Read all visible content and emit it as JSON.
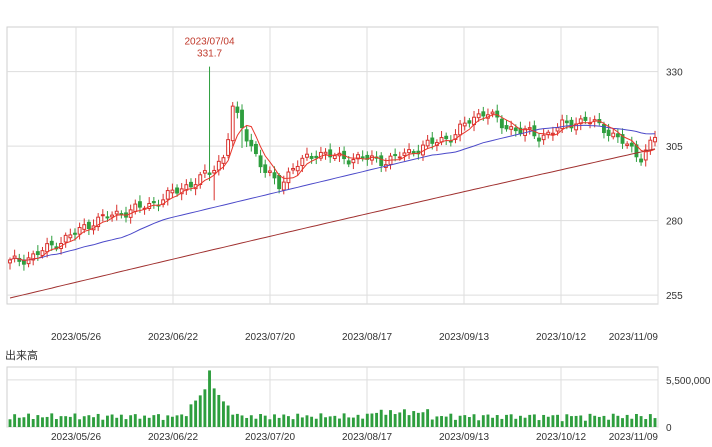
{
  "chart_data": [
    {
      "type": "candlestick",
      "x_ticks": [
        "2023/05/26",
        "2023/06/22",
        "2023/07/20",
        "2023/08/17",
        "2023/09/13",
        "2023/10/12",
        "2023/11/09"
      ],
      "y_ticks": [
        255,
        280,
        305,
        330
      ],
      "ylim": [
        252,
        345
      ],
      "high_annotation": {
        "date": "2023/07/04",
        "value": "331.7"
      },
      "grid": true,
      "colors": {
        "up": "#d9302c",
        "down": "#2e9e3e",
        "ma_short": "#e8362b",
        "ma_mid": "#4b49c9",
        "ma_long": "#a0302f",
        "grid": "#dddddd"
      }
    },
    {
      "type": "bar",
      "title": "出来高",
      "y_ticks": [
        "0",
        "5,500,000"
      ],
      "ylim": [
        0,
        7000000
      ],
      "color": "#2e9e3e"
    }
  ]
}
